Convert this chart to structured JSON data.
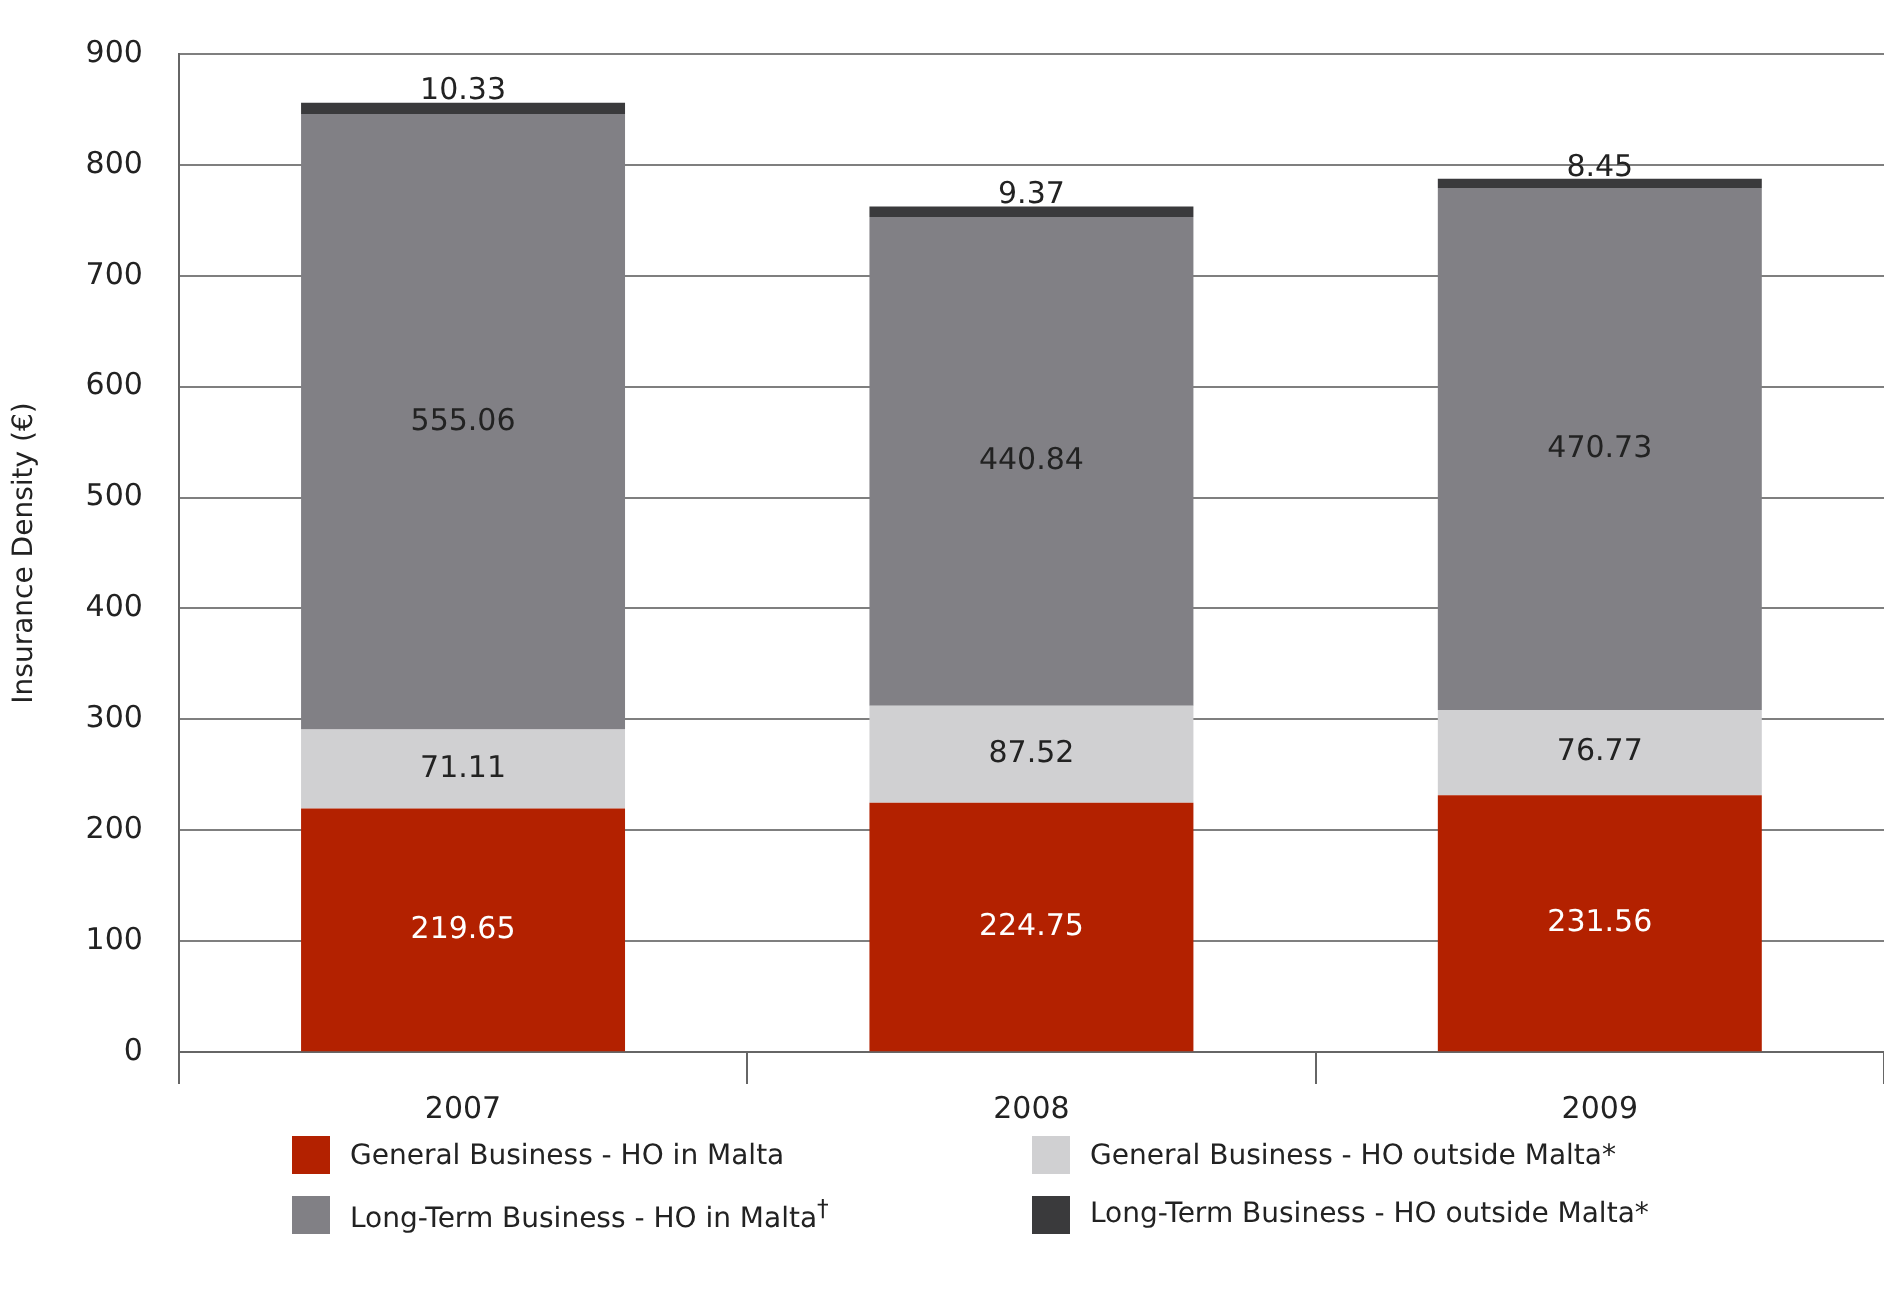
{
  "chart_data": {
    "type": "bar",
    "stacked": true,
    "ylabel": "Insurance Density (€)",
    "categories": [
      "2007",
      "2008",
      "2009"
    ],
    "series": [
      {
        "name": "General Business - HO in Malta",
        "color": "#b32100",
        "values": [
          219.65,
          224.75,
          231.56
        ]
      },
      {
        "name": "General Business - HO outside Malta*",
        "color": "#d0d0d2",
        "values": [
          71.11,
          87.52,
          76.77
        ]
      },
      {
        "name": "Long-Term Business - HO in Malta$^{†}$",
        "color": "#818085",
        "values": [
          555.06,
          440.84,
          470.73
        ]
      },
      {
        "name": "Long-Term Business - HO outside Malta*",
        "color": "#3a3a3c",
        "values": [
          10.33,
          9.37,
          8.45
        ]
      }
    ],
    "ylim": [
      0,
      900
    ],
    "yticks": [
      0,
      100,
      200,
      300,
      400,
      500,
      600,
      700,
      800,
      900
    ],
    "grid": "y",
    "legend": "bottom",
    "data_labels": true
  }
}
